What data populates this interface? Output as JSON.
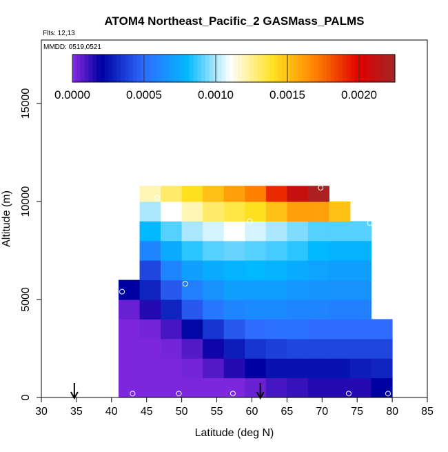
{
  "chart_data": {
    "type": "heatmap",
    "title": "ATOM4 Northeast_Pacific_2 GASMass_PALMS",
    "annotations": [
      "Flts: 12,13",
      "MMDD: 0519,0521"
    ],
    "x_label": "Latitude (deg N)",
    "y_label": "Altitude (m)",
    "xlim": [
      30,
      85
    ],
    "ylim": [
      0,
      18240
    ],
    "xticks": [
      30,
      35,
      40,
      45,
      50,
      55,
      60,
      65,
      70,
      75,
      80,
      85
    ],
    "yticks": [
      0,
      5000,
      10000,
      15000
    ],
    "x_edges": [
      41,
      44,
      47,
      50,
      53,
      56,
      59,
      62,
      65,
      68,
      71,
      74,
      77,
      80
    ],
    "y_edges": [
      0,
      1000,
      2000,
      3000,
      4000,
      5000,
      6000,
      7000,
      8000,
      9000,
      10000,
      10800
    ],
    "values": [
      [
        2e-05,
        2e-05,
        2e-05,
        2e-05,
        2e-05,
        2e-05,
        5e-05,
        0.0001,
        0.00012,
        0.00015,
        0.00015,
        0.00015,
        0.0002
      ],
      [
        2e-05,
        2e-05,
        2e-05,
        3e-05,
        8e-05,
        0.00015,
        0.0002,
        0.00025,
        0.00025,
        0.00025,
        0.00025,
        0.00028,
        0.0003
      ],
      [
        2e-05,
        2e-05,
        3e-05,
        8e-05,
        0.00018,
        0.00028,
        0.00035,
        0.00038,
        0.0004,
        0.0004,
        0.0004,
        0.0004,
        0.0004
      ],
      [
        2e-05,
        3e-05,
        0.0001,
        0.00022,
        0.00035,
        0.00045,
        0.0005,
        0.00052,
        0.00052,
        0.0005,
        0.0005,
        0.0005,
        0.0005
      ],
      [
        5e-05,
        0.00015,
        0.0003,
        0.00045,
        0.00055,
        0.0006,
        0.00062,
        0.00062,
        0.0006,
        0.0006,
        0.00058,
        0.00058,
        null
      ],
      [
        0.0002,
        0.0003,
        0.00045,
        0.00058,
        0.00065,
        0.0007,
        0.0007,
        0.0007,
        0.00068,
        0.00066,
        0.00065,
        0.00065,
        null
      ],
      [
        null,
        0.0004,
        0.0006,
        0.0007,
        0.00075,
        0.00078,
        0.0008,
        0.00078,
        0.00075,
        0.00072,
        0.0007,
        0.0007,
        null
      ],
      [
        null,
        0.0006,
        0.00075,
        0.00085,
        0.0009,
        0.00092,
        0.0009,
        0.00088,
        0.00085,
        0.0008,
        0.00078,
        0.00078,
        null
      ],
      [
        null,
        0.0008,
        0.0009,
        0.001,
        0.00105,
        0.0011,
        0.00105,
        0.001,
        0.00095,
        0.0009,
        0.0009,
        0.0009,
        null
      ],
      [
        null,
        0.001,
        0.0011,
        0.0012,
        0.0013,
        0.00135,
        0.0014,
        0.0015,
        0.0016,
        0.0016,
        0.0015,
        null,
        null
      ],
      [
        null,
        0.0012,
        0.0013,
        0.0014,
        0.0015,
        0.0016,
        0.0017,
        0.0019,
        0.0021,
        0.0022,
        null,
        null,
        null
      ]
    ],
    "colormap": [
      {
        "value": 0,
        "color": "#8a2be2"
      },
      {
        "value": 0.0002,
        "color": "#0000a0"
      },
      {
        "value": 0.0005,
        "color": "#2f6bff"
      },
      {
        "value": 0.0008,
        "color": "#00b8ff"
      },
      {
        "value": 0.0011,
        "color": "#ffffff"
      },
      {
        "value": 0.0014,
        "color": "#ffe020"
      },
      {
        "value": 0.0017,
        "color": "#ff8000"
      },
      {
        "value": 0.002,
        "color": "#e00000"
      },
      {
        "value": 0.00225,
        "color": "#a02828"
      }
    ],
    "clim": [
      0,
      0.00225
    ],
    "cticks": [
      {
        "value": 0,
        "label": "0.0000"
      },
      {
        "value": 0.0005,
        "label": "0.0005"
      },
      {
        "value": 0.001,
        "label": "0.0010"
      },
      {
        "value": 0.0015,
        "label": "0.0015"
      },
      {
        "value": 0.002,
        "label": "0.0020"
      }
    ],
    "points": {
      "x": [
        43,
        49.6,
        57.3,
        73.8,
        79.4,
        41.5,
        50.5,
        59.7,
        76.8,
        69.8,
        46.5
      ],
      "y": [
        200,
        200,
        200,
        200,
        200,
        5400,
        5800,
        9000,
        8900,
        10700,
        10200
      ]
    },
    "arrows_x": [
      34.7,
      61.2
    ]
  }
}
